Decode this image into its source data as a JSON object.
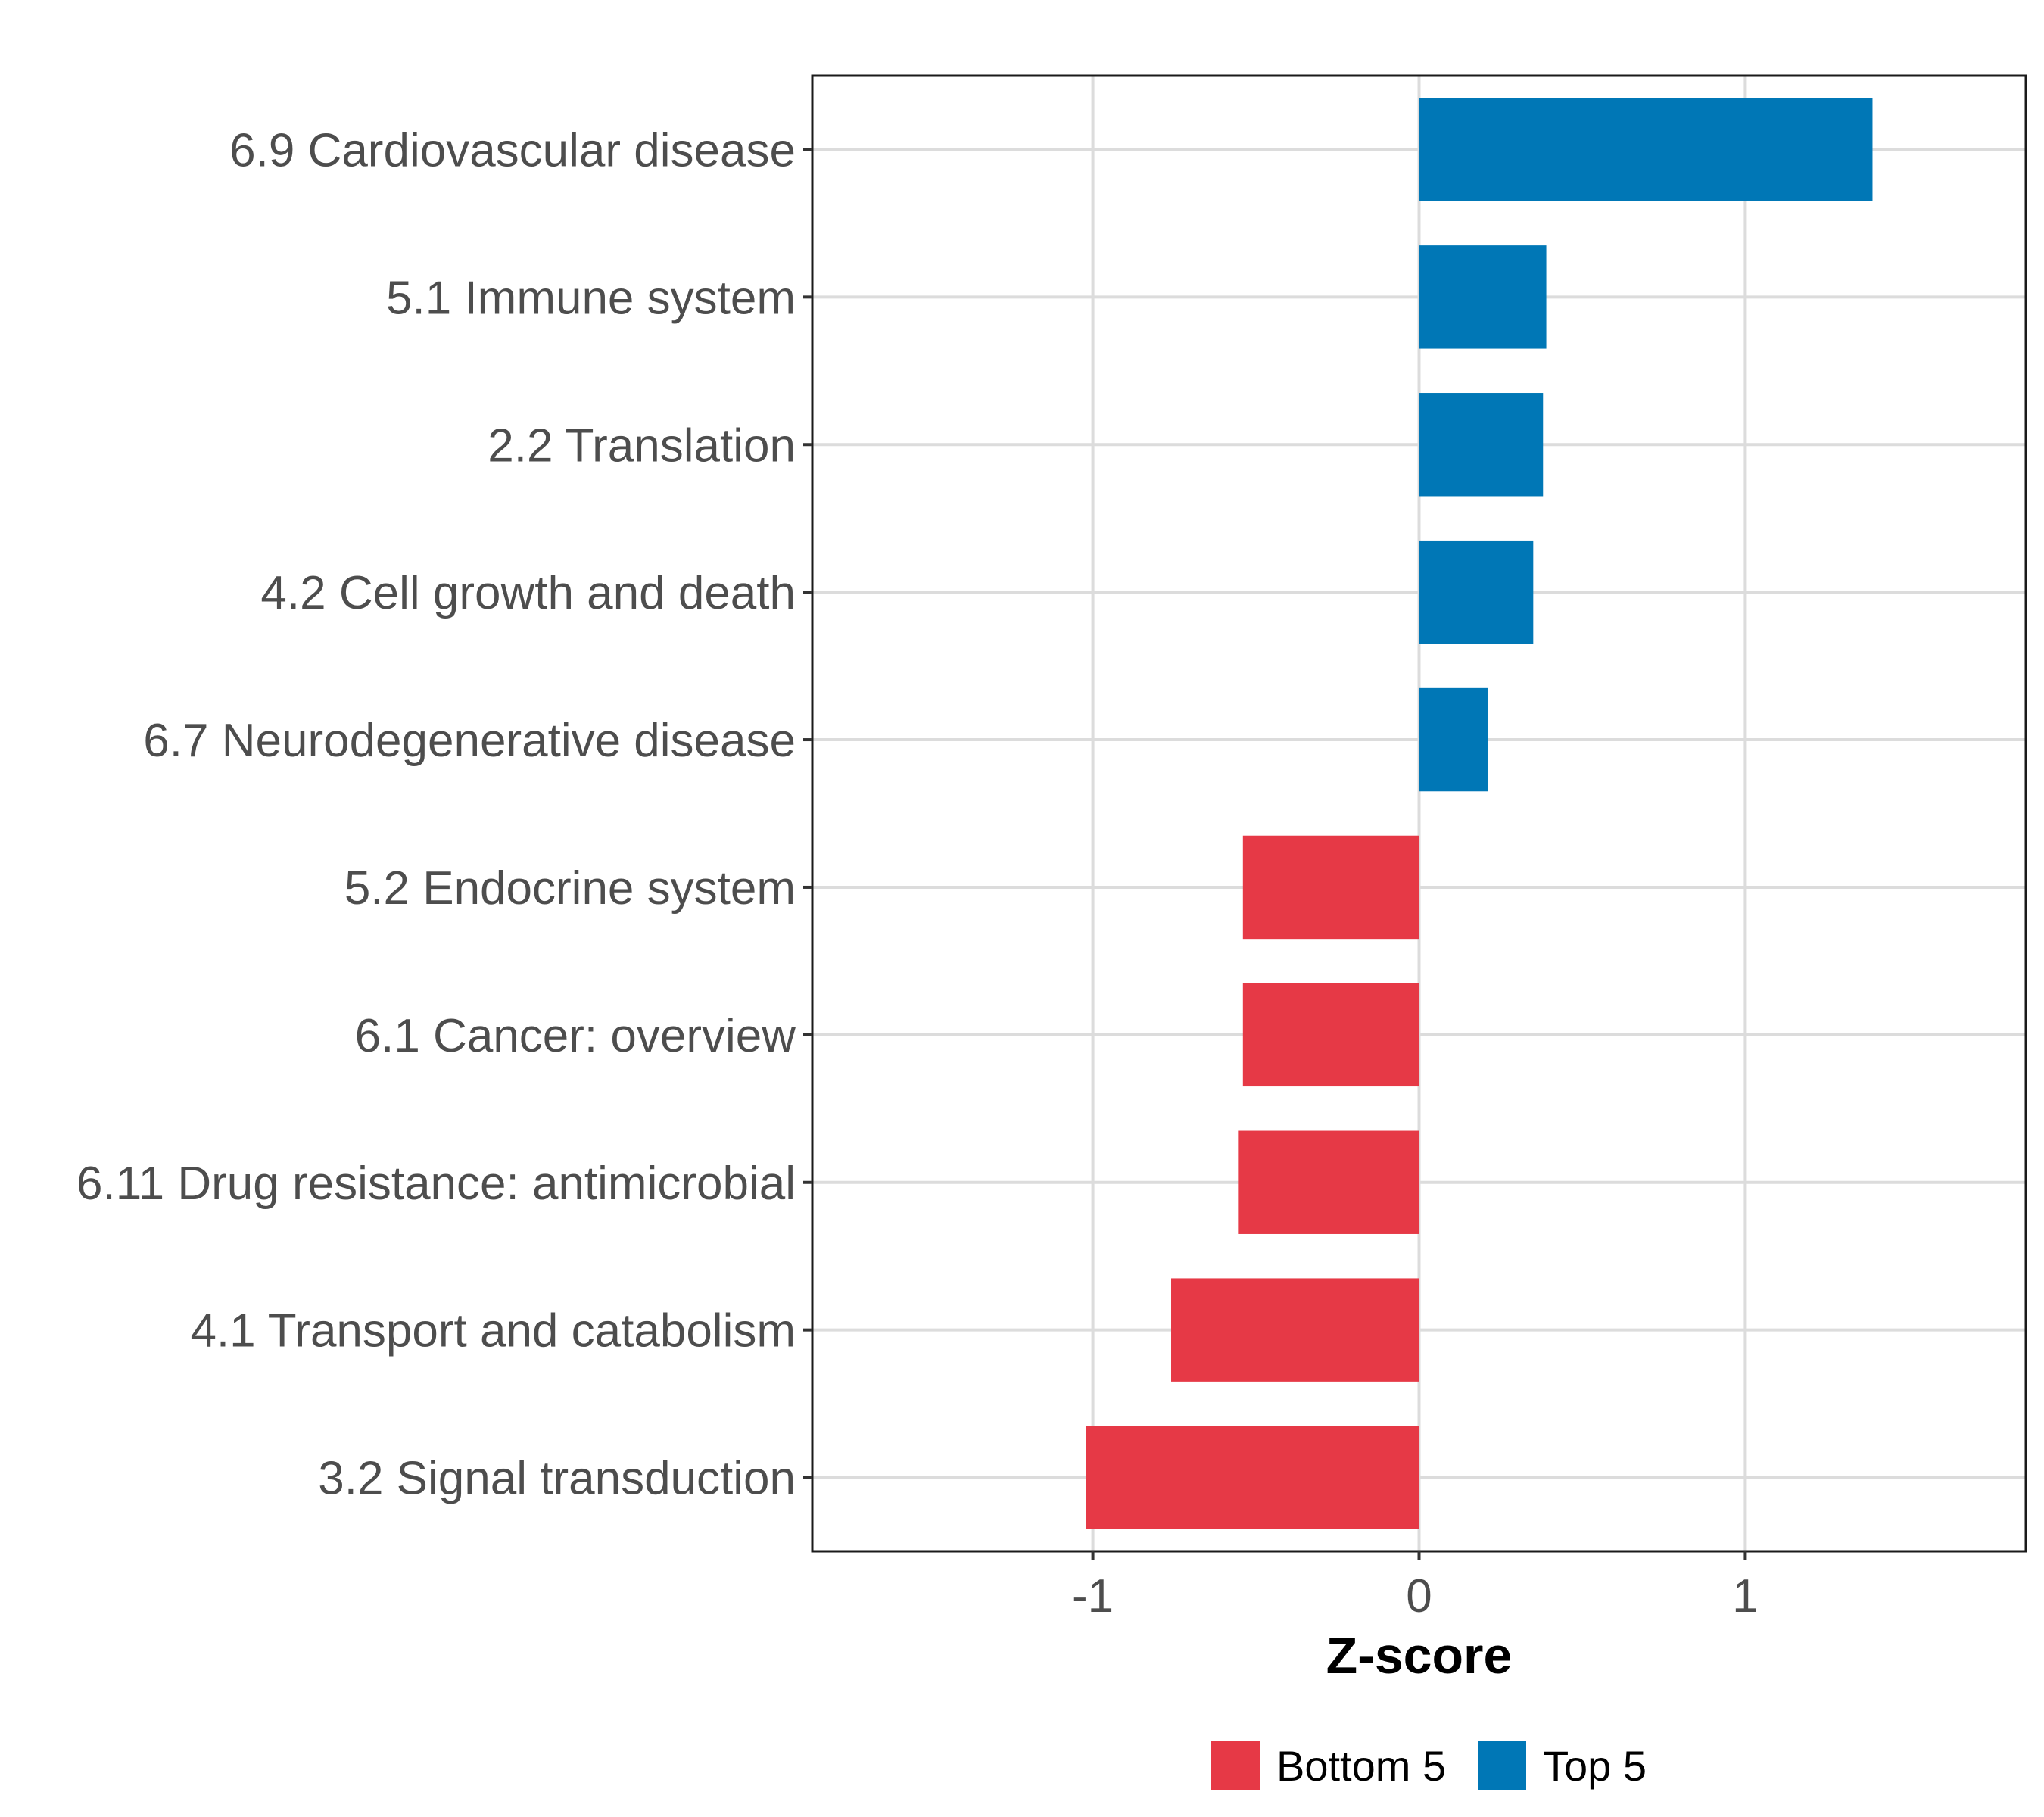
{
  "chart_data": {
    "type": "bar",
    "orientation": "horizontal",
    "title": "",
    "xlabel": "Z-score",
    "ylabel": "",
    "xlim": [
      -1.86,
      1.86
    ],
    "xticks": [
      -1,
      0,
      1
    ],
    "xtick_labels": [
      "-1",
      "0",
      "1"
    ],
    "grid": true,
    "categories": [
      "6.9 Cardiovascular disease",
      "5.1 Immune system",
      "2.2 Translation",
      "4.2 Cell growth and death",
      "6.7 Neurodegenerative disease",
      "5.2 Endocrine system",
      "6.1 Cancer: overview",
      "6.11 Drug resistance: antimicrobial",
      "4.1 Transport and catabolism",
      "3.2 Signal transduction"
    ],
    "values": [
      1.39,
      0.39,
      0.38,
      0.35,
      0.21,
      -0.54,
      -0.54,
      -0.555,
      -0.76,
      -1.02
    ],
    "groups": [
      "Top 5",
      "Top 5",
      "Top 5",
      "Top 5",
      "Top 5",
      "Bottom 5",
      "Bottom 5",
      "Bottom 5",
      "Bottom 5",
      "Bottom 5"
    ],
    "legend": {
      "position": "bottom",
      "entries": [
        {
          "label": "Bottom 5",
          "color": "#E63946"
        },
        {
          "label": "Top 5",
          "color": "#0077B6"
        }
      ]
    },
    "colors": {
      "Top 5": "#0077B6",
      "Bottom 5": "#E63946"
    }
  }
}
